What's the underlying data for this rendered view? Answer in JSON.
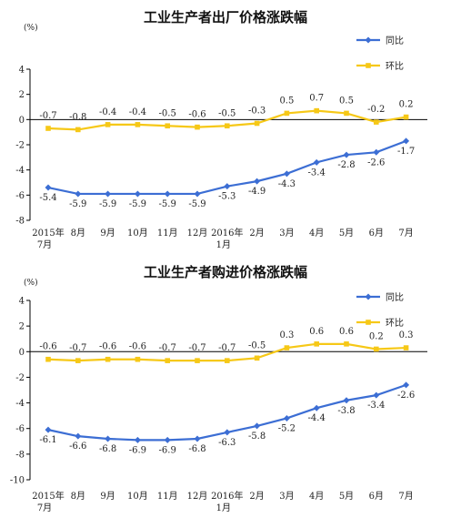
{
  "colors": {
    "yoy": "#3c6ed4",
    "mom": "#f6c817",
    "axis": "#000000"
  },
  "chart_data": [
    {
      "type": "line",
      "title": "工业生产者出厂价格涨跌幅",
      "unit": "(%)",
      "ylim": [
        -8,
        4
      ],
      "yticks": [
        "4",
        "2",
        "0",
        "-2",
        "-4",
        "-6",
        "-8"
      ],
      "categories": [
        "2015年|7月",
        "8月",
        "9月",
        "10月",
        "11月",
        "12月",
        "2016年|1月",
        "2月",
        "3月",
        "4月",
        "5月",
        "6月",
        "7月"
      ],
      "legend_position": "top-right",
      "series": [
        {
          "name": "同比",
          "key": "yoy",
          "values": [
            -5.4,
            -5.9,
            -5.9,
            -5.9,
            -5.9,
            -5.9,
            -5.3,
            -4.9,
            -4.3,
            -3.4,
            -2.8,
            -2.6,
            -1.7
          ],
          "labels": [
            "-5.4",
            "-5.9",
            "-5.9",
            "-5.9",
            "-5.9",
            "-5.9",
            "-5.3",
            "-4.9",
            "-4.3",
            "-3.4",
            "-2.8",
            "-2.6",
            "-1.7"
          ]
        },
        {
          "name": "环比",
          "key": "mom",
          "values": [
            -0.7,
            -0.8,
            -0.4,
            -0.4,
            -0.5,
            -0.6,
            -0.5,
            -0.3,
            0.5,
            0.7,
            0.5,
            -0.2,
            0.2
          ],
          "labels": [
            "-0.7",
            "-0.8",
            "-0.4",
            "-0.4",
            "-0.5",
            "-0.6",
            "-0.5",
            "-0.3",
            "0.5",
            "0.7",
            "0.5",
            "-0.2",
            "0.2"
          ]
        }
      ]
    },
    {
      "type": "line",
      "title": "工业生产者购进价格涨跌幅",
      "unit": "(%)",
      "ylim": [
        -10,
        4
      ],
      "yticks": [
        "4",
        "2",
        "0",
        "-2",
        "-4",
        "-6",
        "-8",
        "-10"
      ],
      "categories": [
        "2015年|7月",
        "8月",
        "9月",
        "10月",
        "11月",
        "12月",
        "2016年|1月",
        "2月",
        "3月",
        "4月",
        "5月",
        "6月",
        "7月"
      ],
      "legend_position": "top-right",
      "series": [
        {
          "name": "同比",
          "key": "yoy",
          "values": [
            -6.1,
            -6.6,
            -6.8,
            -6.9,
            -6.9,
            -6.8,
            -6.3,
            -5.8,
            -5.2,
            -4.4,
            -3.8,
            -3.4,
            -2.6
          ],
          "labels": [
            "-6.1",
            "-6.6",
            "-6.8",
            "-6.9",
            "-6.9",
            "-6.8",
            "-6.3",
            "-5.8",
            "-5.2",
            "-4.4",
            "-3.8",
            "-3.4",
            "-2.6"
          ]
        },
        {
          "name": "环比",
          "key": "mom",
          "values": [
            -0.6,
            -0.7,
            -0.6,
            -0.6,
            -0.7,
            -0.7,
            -0.7,
            -0.5,
            0.3,
            0.6,
            0.6,
            0.2,
            0.3
          ],
          "labels": [
            "-0.6",
            "-0.7",
            "-0.6",
            "-0.6",
            "-0.7",
            "-0.7",
            "-0.7",
            "-0.5",
            "0.3",
            "0.6",
            "0.6",
            "0.2",
            "0.3"
          ]
        }
      ]
    }
  ]
}
